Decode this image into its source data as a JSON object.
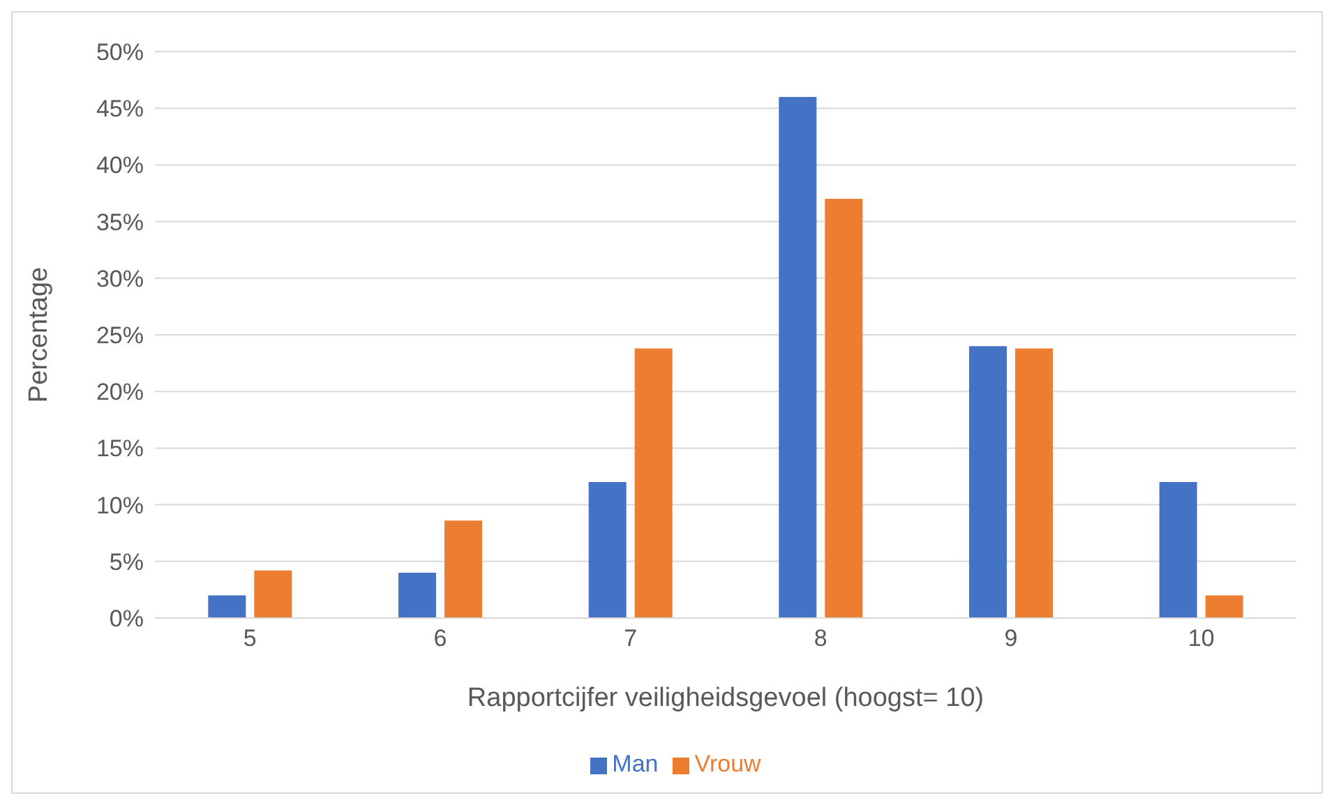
{
  "chart_data": {
    "type": "bar",
    "xlabel": "Rapportcijfer veiligheidsgevoel  (hoogst= 10)",
    "ylabel": "Percentage",
    "categories": [
      "5",
      "6",
      "7",
      "8",
      "9",
      "10"
    ],
    "series": [
      {
        "name": "Man",
        "color": "#4472c4",
        "values": [
          2,
          4,
          12,
          46,
          24,
          12
        ]
      },
      {
        "name": "Vrouw",
        "color": "#ed7d31",
        "values": [
          4.2,
          8.6,
          23.8,
          37,
          23.8,
          2
        ]
      }
    ],
    "ylim": [
      0,
      50
    ],
    "yticks": [
      {
        "value": 0,
        "label": "0%"
      },
      {
        "value": 5,
        "label": "5%"
      },
      {
        "value": 10,
        "label": "10%"
      },
      {
        "value": 15,
        "label": "15%"
      },
      {
        "value": 20,
        "label": "20%"
      },
      {
        "value": 25,
        "label": "25%"
      },
      {
        "value": 30,
        "label": "30%"
      },
      {
        "value": 35,
        "label": "35%"
      },
      {
        "value": 40,
        "label": "40%"
      },
      {
        "value": 45,
        "label": "45%"
      },
      {
        "value": 50,
        "label": "50%"
      }
    ],
    "grid": "y",
    "legend": "bottom"
  }
}
